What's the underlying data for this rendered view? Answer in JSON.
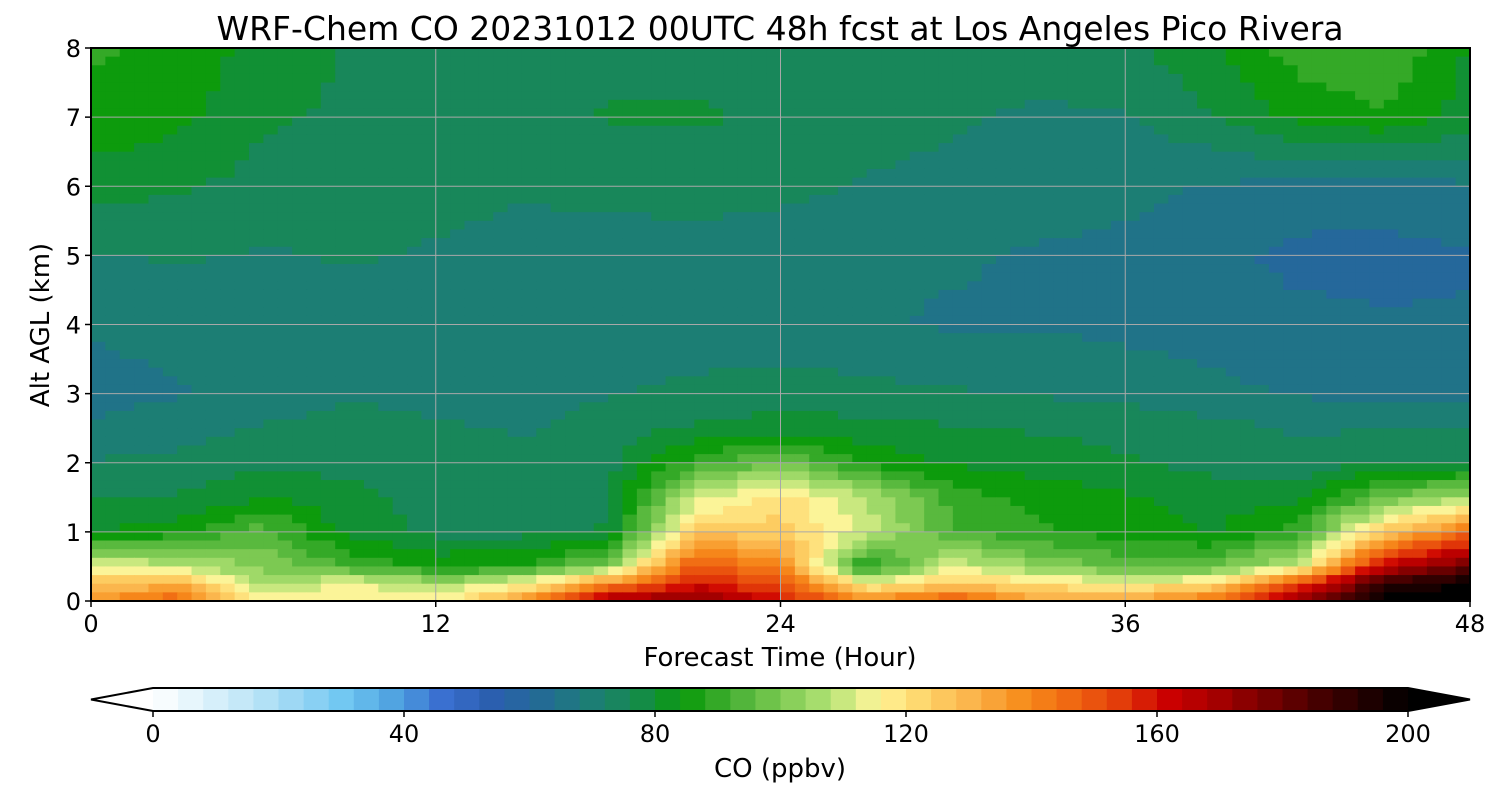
{
  "chart_data": {
    "type": "heatmap",
    "title": "WRF-Chem CO  20231012 00UTC 48h fcst at Los Angeles Pico Rivera",
    "xlabel": "Forecast Time (Hour)",
    "ylabel": "Alt AGL (km)",
    "xlim": [
      0,
      48
    ],
    "ylim": [
      0,
      8
    ],
    "x_ticks": [
      "0",
      "12",
      "24",
      "36",
      "48"
    ],
    "y_ticks": [
      "0",
      "1",
      "2",
      "3",
      "4",
      "5",
      "6",
      "7",
      "8"
    ],
    "grid": true,
    "x": [
      0,
      3,
      6,
      9,
      12,
      15,
      18,
      21,
      24,
      27,
      30,
      33,
      36,
      39,
      42,
      45,
      48
    ],
    "y": [
      0,
      0.25,
      0.5,
      1,
      1.5,
      2,
      2.5,
      3,
      4,
      5,
      6,
      7,
      8
    ],
    "z": [
      [
        135,
        150,
        115,
        115,
        115,
        135,
        170,
        175,
        160,
        140,
        150,
        135,
        135,
        145,
        175,
        200,
        200
      ],
      [
        125,
        130,
        105,
        115,
        105,
        115,
        140,
        160,
        150,
        115,
        125,
        120,
        115,
        120,
        150,
        190,
        200
      ],
      [
        115,
        108,
        102,
        92,
        86,
        88,
        100,
        150,
        140,
        85,
        112,
        102,
        96,
        96,
        110,
        165,
        180
      ],
      [
        82,
        85,
        95,
        80,
        76,
        76,
        78,
        125,
        125,
        110,
        93,
        88,
        85,
        82,
        90,
        125,
        145
      ],
      [
        77,
        78,
        82,
        79,
        76,
        75,
        76,
        110,
        120,
        108,
        90,
        86,
        83,
        80,
        80,
        97,
        105
      ],
      [
        73,
        74,
        76,
        76,
        75,
        74,
        76,
        90,
        98,
        86,
        82,
        80,
        78,
        76,
        74,
        78,
        78
      ],
      [
        68,
        70,
        73,
        74,
        73,
        72,
        75,
        78,
        80,
        79,
        78,
        77,
        76,
        74,
        72,
        72,
        72
      ],
      [
        66,
        67,
        70,
        72,
        71,
        70,
        72,
        74,
        75,
        74,
        73,
        72,
        71,
        69,
        67,
        66,
        66
      ],
      [
        68,
        69,
        68,
        70,
        69,
        68,
        68,
        69,
        69,
        68,
        67,
        67,
        66,
        65,
        64,
        63,
        63
      ],
      [
        72,
        73,
        72,
        73,
        72,
        71,
        70,
        70,
        69,
        68,
        68,
        67,
        66,
        64,
        61,
        61,
        62
      ],
      [
        80,
        78,
        76,
        75,
        74,
        73,
        74,
        75,
        74,
        72,
        71,
        70,
        69,
        67,
        66,
        65,
        67
      ],
      [
        86,
        84,
        78,
        77,
        76,
        74,
        78,
        78,
        77,
        75,
        73,
        72,
        72,
        77,
        84,
        87,
        80
      ],
      [
        88,
        87,
        80,
        77,
        76,
        74,
        76,
        76,
        76,
        74,
        73,
        74,
        76,
        82,
        90,
        92,
        82
      ]
    ],
    "colorbar": {
      "label": "CO  (ppbv)",
      "min": 0,
      "max": 200,
      "ticks": [
        "0",
        "40",
        "80",
        "120",
        "160",
        "200"
      ],
      "extend": "both",
      "colors": [
        "#ffffff",
        "#e0f3fb",
        "#bfe6f7",
        "#99d6f4",
        "#6ec6f2",
        "#4fa2e0",
        "#3a6fd0",
        "#2b5fb0",
        "#236a96",
        "#1d7d78",
        "#168a50",
        "#0a9a0a",
        "#46b034",
        "#7cc952",
        "#b2e274",
        "#fff59a",
        "#fed469",
        "#fbb34a",
        "#f78e1c",
        "#f06812",
        "#e33e0a",
        "#cc0000",
        "#a70000",
        "#7a0000",
        "#4c0000",
        "#250000",
        "#000000"
      ]
    }
  }
}
